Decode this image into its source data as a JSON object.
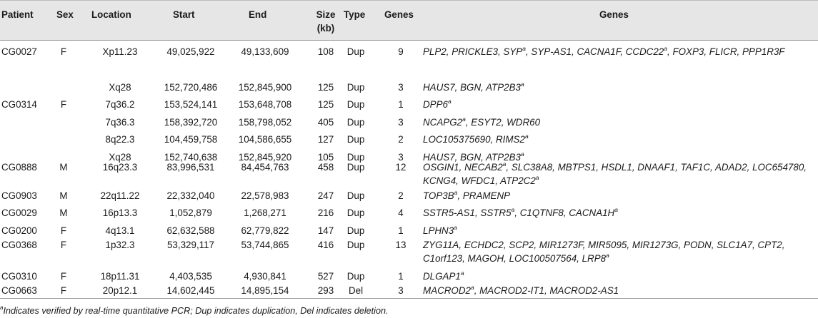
{
  "headers": {
    "patient": "Patient",
    "sex": "Sex",
    "location": "Location",
    "start": "Start",
    "end": "End",
    "size": "Size",
    "size_unit": "(kb)",
    "type": "Type",
    "genes_count": "Genes",
    "genes": "Genes"
  },
  "rows": [
    {
      "patient": "CG0027",
      "sex": "F",
      "location": "Xp11.23",
      "start": "49,025,922",
      "end": "49,133,609",
      "size": "108",
      "type": "Dup",
      "count": "9",
      "genes": [
        {
          "g": "PLP2"
        },
        {
          "g": "PRICKLE3"
        },
        {
          "g": "SYP",
          "sup": "a"
        },
        {
          "g": "SYP-AS1"
        },
        {
          "g": "CACNA1F"
        },
        {
          "g": "CCDC22",
          "sup": "a"
        },
        {
          "g": "FOXP3"
        },
        {
          "g": "FLICR"
        },
        {
          "g": "PPP1R3F"
        }
      ]
    },
    {
      "patient": "",
      "sex": "",
      "location": "Xq28",
      "start": "152,720,486",
      "end": "152,845,900",
      "size": "125",
      "type": "Dup",
      "count": "3",
      "genes": [
        {
          "g": "HAUS7"
        },
        {
          "g": "BGN"
        },
        {
          "g": "ATP2B3",
          "sup": "a"
        }
      ]
    },
    {
      "patient": "CG0314",
      "sex": "F",
      "location": "7q36.2",
      "start": "153,524,141",
      "end": "153,648,708",
      "size": "125",
      "type": "Dup",
      "count": "1",
      "genes": [
        {
          "g": "DPP6",
          "sup": "a"
        }
      ]
    },
    {
      "patient": "",
      "sex": "",
      "location": "7q36.3",
      "start": "158,392,720",
      "end": "158,798,052",
      "size": "405",
      "type": "Dup",
      "count": "3",
      "genes": [
        {
          "g": "NCAPG2",
          "sup": "a"
        },
        {
          "g": "ESYT2"
        },
        {
          "g": "WDR60"
        }
      ]
    },
    {
      "patient": "",
      "sex": "",
      "location": "8q22.3",
      "start": "104,459,758",
      "end": "104,586,655",
      "size": "127",
      "type": "Dup",
      "count": "2",
      "genes": [
        {
          "g": "LOC105375690"
        },
        {
          "g": "RIMS2",
          "sup": "a"
        }
      ]
    },
    {
      "patient": "",
      "sex": "",
      "location": "Xq28",
      "start": "152,740,638",
      "end": "152,845,920",
      "size": "105",
      "type": "Dup",
      "count": "3",
      "genes": [
        {
          "g": "HAUS7"
        },
        {
          "g": "BGN"
        },
        {
          "g": "ATP2B3",
          "sup": "a"
        }
      ]
    },
    {
      "patient": "CG0888",
      "sex": "M",
      "location": "16q23.3",
      "start": "83,996,531",
      "end": "84,454,763",
      "size": "458",
      "type": "Dup",
      "count": "12",
      "genes": [
        {
          "g": "OSGIN1"
        },
        {
          "g": "NECAB2",
          "sup": "a"
        },
        {
          "g": "SLC38A8"
        },
        {
          "g": "MBTPS1"
        },
        {
          "g": "HSDL1"
        },
        {
          "g": "DNAAF1"
        },
        {
          "g": "TAF1C"
        },
        {
          "g": "ADAD2"
        },
        {
          "g": "LOC654780"
        },
        {
          "g": "KCNG4"
        },
        {
          "g": "WFDC1"
        },
        {
          "g": "ATP2C2",
          "sup": "a"
        }
      ]
    },
    {
      "patient": "CG0903",
      "sex": "M",
      "location": "22q11.22",
      "start": "22,332,040",
      "end": "22,578,983",
      "size": "247",
      "type": "Dup",
      "count": "2",
      "genes": [
        {
          "g": "TOP3B",
          "sup": "a"
        },
        {
          "g": "PRAMENP"
        }
      ]
    },
    {
      "patient": "CG0029",
      "sex": "M",
      "location": "16p13.3",
      "start": "1,052,879",
      "end": "1,268,271",
      "size": "216",
      "type": "Dup",
      "count": "4",
      "genes": [
        {
          "g": "SSTR5-AS1"
        },
        {
          "g": "SSTR5",
          "sup": "a"
        },
        {
          "g": "C1QTNF8"
        },
        {
          "g": "CACNA1H",
          "sup": "a"
        }
      ]
    },
    {
      "patient": "CG0200",
      "sex": "F",
      "location": "4q13.1",
      "start": "62,632,588",
      "end": "62,779,822",
      "size": "147",
      "type": "Dup",
      "count": "1",
      "genes": [
        {
          "g": "LPHN3",
          "sup": "a"
        }
      ]
    },
    {
      "patient": "CG0368",
      "sex": "F",
      "location": "1p32.3",
      "start": "53,329,117",
      "end": "53,744,865",
      "size": "416",
      "type": "Dup",
      "count": "13",
      "genes": [
        {
          "g": "ZYG11A"
        },
        {
          "g": "ECHDC2"
        },
        {
          "g": "SCP2"
        },
        {
          "g": "MIR1273F"
        },
        {
          "g": "MIR5095"
        },
        {
          "g": "MIR1273G"
        },
        {
          "g": "PODN"
        },
        {
          "g": "SLC1A7"
        },
        {
          "g": "CPT2"
        },
        {
          "g": "C1orf123"
        },
        {
          "g": "MAGOH"
        },
        {
          "g": "LOC100507564"
        },
        {
          "g": "LRP8",
          "sup": "a"
        }
      ]
    },
    {
      "patient": "CG0310",
      "sex": "F",
      "location": "18p11.31",
      "start": "4,403,535",
      "end": "4,930,841",
      "size": "527",
      "type": "Dup",
      "count": "1",
      "genes": [
        {
          "g": "DLGAP1",
          "sup": "a"
        }
      ]
    },
    {
      "patient": "CG0663",
      "sex": "F",
      "location": "20p12.1",
      "start": "14,602,445",
      "end": "14,895,154",
      "size": "293",
      "type": "Del",
      "count": "3",
      "genes": [
        {
          "g": "MACROD2",
          "sup": "a"
        },
        {
          "g": "MACROD2-IT1"
        },
        {
          "g": "MACROD2-AS1"
        }
      ]
    }
  ],
  "footnote": {
    "marker": "a",
    "text": "Indicates verified by real-time quantitative PCR; Dup indicates duplication, Del indicates deletion."
  }
}
